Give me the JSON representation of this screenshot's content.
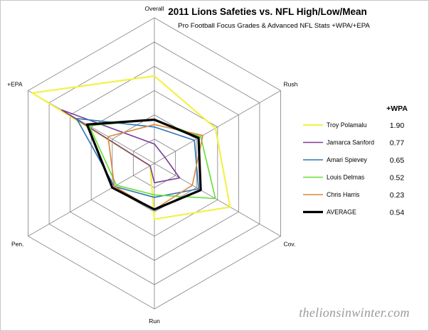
{
  "chart_data": {
    "type": "radar",
    "title": "2011 Lions Safeties vs. NFL High/Low/Mean",
    "subtitle": "Pro Football Focus Grades & Advanced NFL Stats +WPA/+EPA",
    "axes": [
      "Overall",
      "Rush",
      "Cov.",
      "Run",
      "Pen.",
      "+EPA"
    ],
    "range": [
      0,
      6
    ],
    "grid_levels": 6,
    "legend_header": "+WPA",
    "series": [
      {
        "name": "Troy Polamalu",
        "wpa": "1.90",
        "color": "#f2f24a",
        "width": 2.2,
        "values": [
          3.6,
          2.9,
          3.6,
          2.3,
          0.2,
          5.8
        ]
      },
      {
        "name": "Jamarca Sanford",
        "wpa": "0.77",
        "color": "#7b3d96",
        "width": 1.6,
        "values": [
          0.8,
          0.5,
          1.2,
          0.8,
          0.2,
          4.4
        ]
      },
      {
        "name": "Amari Spievey",
        "wpa": "0.65",
        "color": "#2f74b5",
        "width": 1.6,
        "values": [
          1.5,
          1.9,
          2.1,
          1.4,
          1.9,
          3.7
        ]
      },
      {
        "name": "Louis Delmas",
        "wpa": "0.52",
        "color": "#66dd33",
        "width": 1.6,
        "values": [
          1.8,
          2.2,
          2.9,
          1.3,
          1.8,
          3.1
        ]
      },
      {
        "name": "Chris Harris",
        "wpa": "0.23",
        "color": "#d8883c",
        "width": 1.6,
        "values": [
          1.6,
          2.3,
          1.8,
          1.9,
          1.9,
          2.2
        ]
      },
      {
        "name": "AVERAGE",
        "wpa": "0.54",
        "color": "#000000",
        "width": 3.2,
        "values": [
          1.8,
          2.1,
          2.2,
          1.9,
          2.0,
          3.2
        ]
      }
    ]
  },
  "watermark": "thelionsinwinter.com"
}
